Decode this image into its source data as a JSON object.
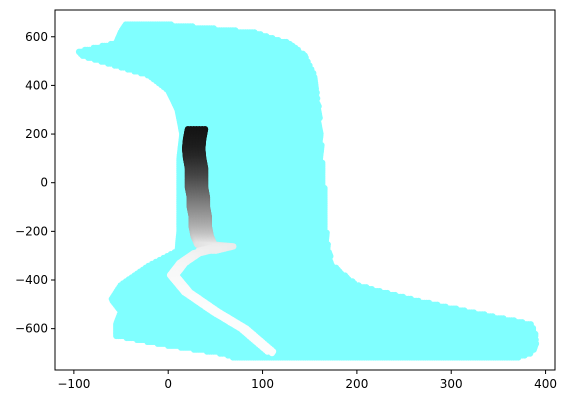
{
  "chart_data": {
    "type": "scatter",
    "title": "",
    "xlabel": "",
    "ylabel": "",
    "xlim": [
      -120,
      410
    ],
    "ylim": [
      -770,
      710
    ],
    "grid": false,
    "legend": "none",
    "x_ticks": [
      -100,
      0,
      100,
      200,
      300,
      400
    ],
    "y_ticks": [
      -600,
      -400,
      -200,
      0,
      200,
      400,
      600
    ],
    "x_tick_labels": [
      "−100",
      "0",
      "100",
      "200",
      "300",
      "400"
    ],
    "y_tick_labels": [
      "−600",
      "−400",
      "−200",
      "0",
      "200",
      "400",
      "600"
    ],
    "series": [
      {
        "color": "#80ffff",
        "marker": "o",
        "region": {
          "bands": [
            {
              "y": 650,
              "x0": -45,
              "x1": 5
            },
            {
              "y": 620,
              "x0": -50,
              "x1": 90
            },
            {
              "y": 575,
              "x0": -55,
              "x1": 128
            },
            {
              "y": 540,
              "x0": -95,
              "x1": 140
            },
            {
              "y": 520,
              "x0": -90,
              "x1": 146
            },
            {
              "y": 480,
              "x0": -55,
              "x1": 150
            },
            {
              "y": 440,
              "x0": -20,
              "x1": 155
            },
            {
              "y": 380,
              "x0": 0,
              "x1": 157
            },
            {
              "y": 300,
              "x0": 10,
              "x1": 160
            },
            {
              "y": 200,
              "x0": 15,
              "x1": 162
            },
            {
              "y": 100,
              "x0": 12,
              "x1": 163
            },
            {
              "y": 0,
              "x0": 12,
              "x1": 165
            },
            {
              "y": -100,
              "x0": 12,
              "x1": 168
            },
            {
              "y": -200,
              "x0": 12,
              "x1": 168
            },
            {
              "y": -280,
              "x0": 10,
              "x1": 170
            },
            {
              "y": -340,
              "x0": -20,
              "x1": 175
            },
            {
              "y": -420,
              "x0": -50,
              "x1": 200
            },
            {
              "y": -480,
              "x0": -60,
              "x1": 260
            },
            {
              "y": -530,
              "x0": -50,
              "x1": 320
            },
            {
              "y": -580,
              "x0": -55,
              "x1": 385
            },
            {
              "y": -630,
              "x0": -55,
              "x1": 390
            },
            {
              "y": -670,
              "x0": 0,
              "x1": 390
            },
            {
              "y": -705,
              "x0": 60,
              "x1": 385
            },
            {
              "y": -720,
              "x0": 70,
              "x1": 370
            }
          ]
        }
      },
      {
        "color": "gradient-black-to-white",
        "marker": "o",
        "points": [
          {
            "x": 30,
            "y": 220,
            "gray": 20
          },
          {
            "x": 28,
            "y": 180,
            "gray": 25
          },
          {
            "x": 27,
            "y": 140,
            "gray": 30
          },
          {
            "x": 28,
            "y": 100,
            "gray": 40
          },
          {
            "x": 30,
            "y": 60,
            "gray": 55
          },
          {
            "x": 30,
            "y": 20,
            "gray": 70
          },
          {
            "x": 30,
            "y": -20,
            "gray": 90
          },
          {
            "x": 32,
            "y": -60,
            "gray": 110
          },
          {
            "x": 32,
            "y": -100,
            "gray": 130
          },
          {
            "x": 34,
            "y": -140,
            "gray": 150
          },
          {
            "x": 34,
            "y": -180,
            "gray": 170
          },
          {
            "x": 36,
            "y": -220,
            "gray": 195
          },
          {
            "x": 40,
            "y": -255,
            "gray": 225
          },
          {
            "x": 60,
            "y": -262,
            "gray": 235
          },
          {
            "x": 30,
            "y": -290,
            "gray": 240
          },
          {
            "x": 15,
            "y": -330,
            "gray": 245
          },
          {
            "x": 5,
            "y": -380,
            "gray": 248
          },
          {
            "x": 20,
            "y": -450,
            "gray": 250
          },
          {
            "x": 50,
            "y": -530,
            "gray": 252
          },
          {
            "x": 80,
            "y": -600,
            "gray": 252
          },
          {
            "x": 110,
            "y": -700,
            "gray": 252
          }
        ]
      }
    ]
  }
}
